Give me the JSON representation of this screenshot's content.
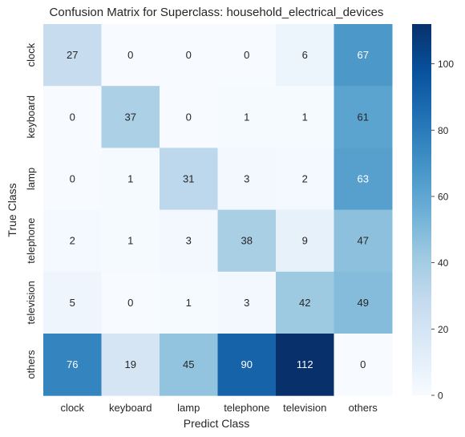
{
  "chart_data": {
    "type": "heatmap",
    "title": "Confusion Matrix for Superclass: household_electrical_devices",
    "xlabel": "Predict Class",
    "ylabel": "True Class",
    "x_categories": [
      "clock",
      "keyboard",
      "lamp",
      "telephone",
      "television",
      "others"
    ],
    "y_categories": [
      "clock",
      "keyboard",
      "lamp",
      "telephone",
      "television",
      "others"
    ],
    "values": [
      [
        27,
        0,
        0,
        0,
        6,
        67
      ],
      [
        0,
        37,
        0,
        1,
        1,
        61
      ],
      [
        0,
        1,
        31,
        3,
        2,
        63
      ],
      [
        2,
        1,
        3,
        38,
        9,
        47
      ],
      [
        5,
        0,
        1,
        3,
        42,
        49
      ],
      [
        76,
        19,
        45,
        90,
        112,
        0
      ]
    ],
    "colorbar": {
      "range": [
        0,
        112
      ],
      "ticks": [
        0,
        20,
        40,
        60,
        80,
        100
      ],
      "colormap": "Blues",
      "colors": [
        "#f7fbff",
        "#deebf7",
        "#c6dbef",
        "#9ecae1",
        "#6baed6",
        "#4292c6",
        "#2171b5",
        "#08519c",
        "#08306b"
      ]
    },
    "grid": false
  }
}
